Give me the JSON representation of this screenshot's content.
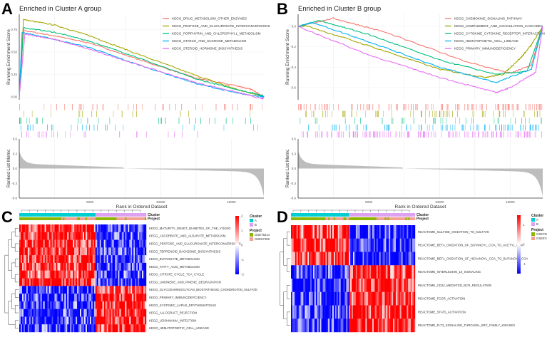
{
  "panels": {
    "A": "A",
    "B": "B",
    "C": "C",
    "D": "D"
  },
  "colors": {
    "red": "#F8766D",
    "olive": "#A3A500",
    "green": "#00BF7D",
    "blue": "#00B0F6",
    "magenta": "#E76BF3",
    "cyan": "#00CED1",
    "violet": "#DDA0F0",
    "proj1": "#8DB600",
    "proj2": "#F4A090",
    "hi": "#FF0000",
    "lo": "#0000FF"
  },
  "chart_data": [
    {
      "type": "line",
      "title": "Enriched in Cluster A group",
      "ylabel": "Running Enrichment Score",
      "xlabel": "Rank in Ordered Dataset",
      "xlim": [
        0,
        17300
      ],
      "ylim": [
        -0.03,
        0.92
      ],
      "yticks": [
        "0.00",
        "0.25",
        "0.50",
        "0.75"
      ],
      "xticks": [
        "5000",
        "10000",
        "15000"
      ],
      "legend": "top-right",
      "metric_label": "Ranked List Metric",
      "metric_ylim": [
        -0.6,
        0.6
      ],
      "metric_ticks": [
        "0.6",
        "0.3",
        "0.0",
        "-0.3",
        "-0.6"
      ],
      "series": [
        {
          "name": "KEGG_DRUG_METABOLISM_OTHER_ENZYMES",
          "color": "#F8766D",
          "points": [
            [
              0,
              0
            ],
            [
              300,
              0.74
            ],
            [
              2500,
              0.68
            ],
            [
              5000,
              0.6
            ],
            [
              8000,
              0.44
            ],
            [
              12500,
              0.21
            ],
            [
              15500,
              0.12
            ],
            [
              16500,
              0.08
            ],
            [
              17300,
              0
            ]
          ]
        },
        {
          "name": "KEGG_PENTOSE_AND_GLUCURONATE_INTERCONVERSIONS",
          "color": "#A3A500",
          "points": [
            [
              0,
              0
            ],
            [
              300,
              0.86
            ],
            [
              2500,
              0.8
            ],
            [
              5000,
              0.68
            ],
            [
              8000,
              0.5
            ],
            [
              12500,
              0.24
            ],
            [
              15500,
              0.08
            ],
            [
              17000,
              0.02
            ],
            [
              17300,
              0
            ]
          ]
        },
        {
          "name": "KEGG_PORPHYRIN_AND_CHLOROPHYLL_METABOLISM",
          "color": "#00BF7D",
          "points": [
            [
              0,
              0
            ],
            [
              300,
              0.77
            ],
            [
              2500,
              0.72
            ],
            [
              5000,
              0.62
            ],
            [
              8000,
              0.46
            ],
            [
              12500,
              0.2
            ],
            [
              15500,
              0.08
            ],
            [
              17200,
              0.02
            ],
            [
              17300,
              0
            ]
          ]
        },
        {
          "name": "KEGG_STARCH_AND_SUCROSE_METABOLISM",
          "color": "#00B0F6",
          "points": [
            [
              0,
              0
            ],
            [
              200,
              0.72
            ],
            [
              2500,
              0.64
            ],
            [
              5000,
              0.55
            ],
            [
              8000,
              0.38
            ],
            [
              12500,
              0.15
            ],
            [
              15500,
              0.04
            ],
            [
              17000,
              0.01
            ],
            [
              17300,
              0
            ]
          ]
        },
        {
          "name": "KEGG_STEROID_HORMONE_BIOSYNTHESIS",
          "color": "#E76BF3",
          "points": [
            [
              0,
              0
            ],
            [
              400,
              0.7
            ],
            [
              2500,
              0.64
            ],
            [
              5000,
              0.53
            ],
            [
              8000,
              0.38
            ],
            [
              12500,
              0.16
            ],
            [
              15500,
              0.05
            ],
            [
              17200,
              -0.02
            ],
            [
              17300,
              0
            ]
          ]
        }
      ]
    },
    {
      "type": "line",
      "title": "Enriched in Cluster B group",
      "ylabel": "Running Enrichment Score",
      "xlabel": "Rank in Ordered Dataset",
      "xlim": [
        0,
        17300
      ],
      "ylim": [
        -0.72,
        0.12
      ],
      "yticks": [
        "0.0",
        "-0.2",
        "-0.4",
        "-0.6"
      ],
      "xticks": [
        "5000",
        "10000",
        "15000"
      ],
      "legend": "top-right",
      "metric_label": "Ranked List Metric",
      "metric_ylim": [
        -0.6,
        0.6
      ],
      "metric_ticks": [
        "0.6",
        "0.3",
        "0.0",
        "-0.3",
        "-0.6"
      ],
      "series": [
        {
          "name": "KEGG_CHEMOKINE_SIGNALING_PATHWAY",
          "color": "#F8766D",
          "points": [
            [
              0,
              0
            ],
            [
              2500,
              0.08
            ],
            [
              6000,
              -0.05
            ],
            [
              12000,
              -0.35
            ],
            [
              15000,
              -0.46
            ],
            [
              16500,
              -0.38
            ],
            [
              17300,
              0
            ]
          ]
        },
        {
          "name": "KEGG_COMPLEMENT_AND_COAGULATION_CASCADES",
          "color": "#A3A500",
          "points": [
            [
              0,
              0
            ],
            [
              500,
              0.01
            ],
            [
              5000,
              -0.19
            ],
            [
              10000,
              -0.42
            ],
            [
              13200,
              -0.5
            ],
            [
              14500,
              -0.47
            ],
            [
              15800,
              -0.3
            ],
            [
              16500,
              -0.18
            ],
            [
              17300,
              0
            ]
          ]
        },
        {
          "name": "KEGG_CYTOKINE_CYTOKINE_RECEPTOR_INTERACTION",
          "color": "#00BF7D",
          "points": [
            [
              0,
              0
            ],
            [
              1500,
              0.06
            ],
            [
              5000,
              -0.08
            ],
            [
              10000,
              -0.33
            ],
            [
              14000,
              -0.47
            ],
            [
              16200,
              -0.44
            ],
            [
              17300,
              0
            ]
          ]
        },
        {
          "name": "KEGG_HEMATOPOIETIC_CELL_LINEAGE",
          "color": "#00B0F6",
          "points": [
            [
              0,
              0
            ],
            [
              1000,
              0.04
            ],
            [
              5000,
              -0.15
            ],
            [
              10000,
              -0.4
            ],
            [
              14000,
              -0.55
            ],
            [
              16500,
              -0.42
            ],
            [
              17300,
              0
            ]
          ]
        },
        {
          "name": "KEGG_PRIMARY_IMMUNODEFICIENCY",
          "color": "#E76BF3",
          "points": [
            [
              0,
              0
            ],
            [
              5000,
              -0.28
            ],
            [
              10000,
              -0.5
            ],
            [
              14000,
              -0.65
            ],
            [
              15000,
              -0.6
            ],
            [
              16800,
              -0.45
            ],
            [
              17300,
              0
            ]
          ]
        }
      ]
    },
    {
      "type": "heatmap",
      "annotation_labels": [
        "Cluster",
        "Project"
      ],
      "legend_cluster_title": "Cluster",
      "legend_cluster": [
        "A",
        "B"
      ],
      "legend_project_title": "Project",
      "legend_project": [
        "GSE75214",
        "GSE87466"
      ],
      "color_range": [
        -2,
        2
      ],
      "color_ticks": [
        "2",
        "1",
        "0",
        "-1",
        "-2"
      ],
      "cluster_A_fraction": 0.6,
      "rows": [
        {
          "name": "KEGG_MATURITY_ONSET_DIABETES_OF_THE_YOUNG",
          "high_in": "A"
        },
        {
          "name": "KEGG_ASCORBATE_AND_ALDARATE_METABOLISM",
          "high_in": "A"
        },
        {
          "name": "KEGG_PENTOSE_AND_GLUCURONATE_INTERCONVERSIONS",
          "high_in": "A"
        },
        {
          "name": "KEGG_TERPENOID_BACKBONE_BIOSYNTHESIS",
          "high_in": "A"
        },
        {
          "name": "KEGG_BUTANOATE_METABOLISM",
          "high_in": "A"
        },
        {
          "name": "KEGG_FATTY_ACID_METABOLISM",
          "high_in": "A"
        },
        {
          "name": "KEGG_CITRATE_CYCLE_TCA_CYCLE",
          "high_in": "A"
        },
        {
          "name": "KEGG_LIMONENE_AND_PINENE_DEGRADATION",
          "high_in": "A"
        },
        {
          "name": "KEGG_GLYCOSAMINOGLYCAN_BIOSYNTHESIS_CHONDROITIN_SULFATE",
          "high_in": "B"
        },
        {
          "name": "KEGG_PRIMARY_IMMUNODEFICIENCY",
          "high_in": "B"
        },
        {
          "name": "KEGG_SYSTEMIC_LUPUS_ERYTHEMATOSUS",
          "high_in": "B"
        },
        {
          "name": "KEGG_ALLOGRAFT_REJECTION",
          "high_in": "B"
        },
        {
          "name": "KEGG_LEISHMANIA_INFECTION",
          "high_in": "B"
        },
        {
          "name": "KEGG_HEMATOPOIETIC_CELL_LINEAGE",
          "high_in": "B"
        }
      ]
    },
    {
      "type": "heatmap",
      "annotation_labels": [
        "Cluster",
        "Project"
      ],
      "legend_cluster_title": "Cluster",
      "legend_cluster": [
        "A",
        "B"
      ],
      "legend_project_title": "Project",
      "legend_project": [
        "GSE75214",
        "GSE87466"
      ],
      "color_range": [
        -1.5,
        1.5
      ],
      "color_ticks": [
        "1",
        "0",
        "-1"
      ],
      "cluster_A_fraction": 0.47,
      "rows": [
        {
          "name": "REACTOME_SULFIDE_OXIDATION_TO_SULFATE",
          "high_in": "A"
        },
        {
          "name": "REACTOME_BETA_OXIDATION_OF_BUTANOYL_COA_TO_ACETYL_COA",
          "high_in": "A"
        },
        {
          "name": "REACTOME_BETA_OXIDATION_OF_HEXANOYL_COA_TO_BUTANOYL_COA",
          "high_in": "A"
        },
        {
          "name": "REACTOME_INTERLEUKIN_10_SIGNALING",
          "high_in": "B"
        },
        {
          "name": "REACTOME_CD22_MEDIATED_BCR_REGULATION",
          "high_in": "B"
        },
        {
          "name": "REACTOME_FCGR_ACTIVATION",
          "high_in": "B"
        },
        {
          "name": "REACTOME_STAT5_ACTIVATION",
          "high_in": "B"
        },
        {
          "name": "REACTOME_FLT3_SIGNALING_THROUGH_SRC_FAMILY_KINASES",
          "high_in": "B"
        }
      ]
    }
  ]
}
